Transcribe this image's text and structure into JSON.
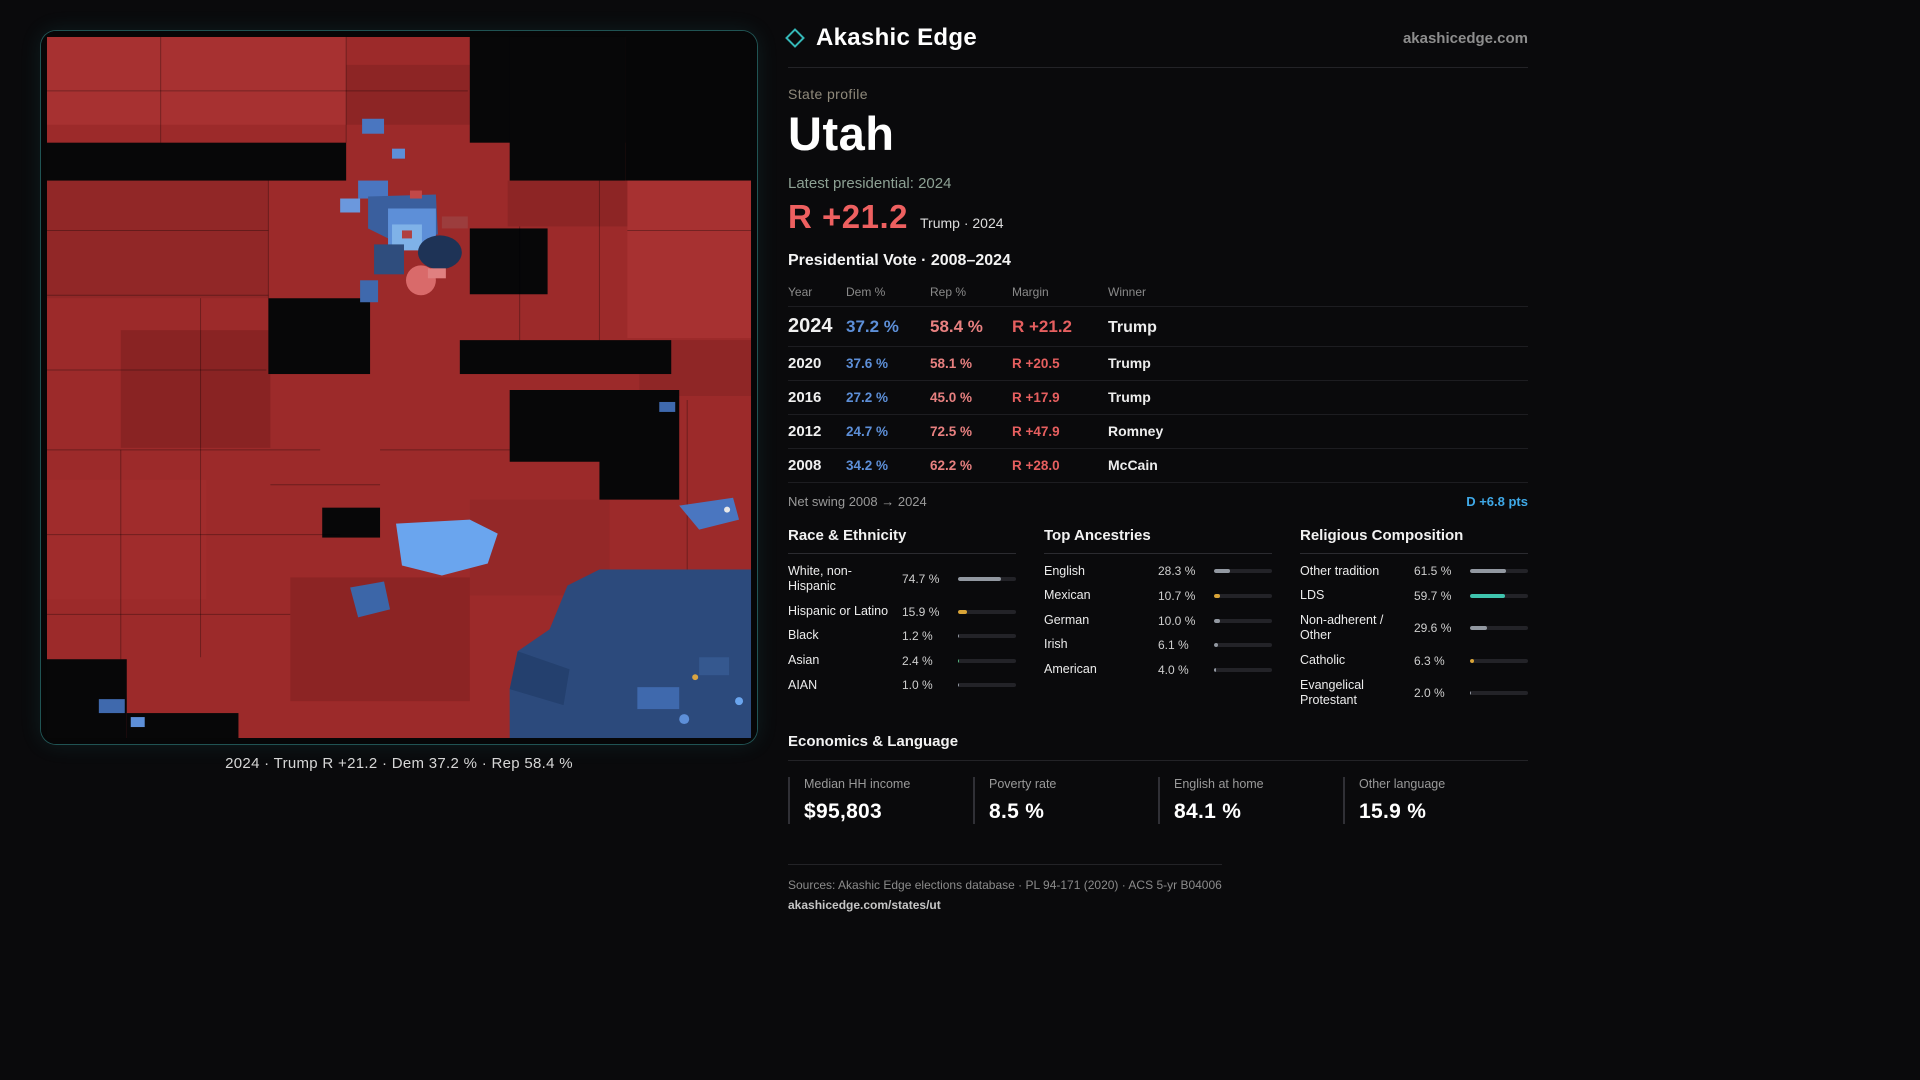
{
  "brand": {
    "name": "Akashic Edge",
    "site": "akashicedge.com"
  },
  "profile": {
    "kicker": "State profile",
    "title": "Utah",
    "latest_label": "Latest presidential: 2024",
    "headline_margin": "R +21.2",
    "headline_context": "Trump · 2024"
  },
  "map": {
    "caption": "2024 · Trump R +21.2 · Dem 37.2 % · Rep 58.4 %"
  },
  "vote_table": {
    "title": "Presidential Vote · 2008–2024",
    "columns": {
      "year": "Year",
      "dem": "Dem %",
      "rep": "Rep %",
      "margin": "Margin",
      "winner": "Winner"
    },
    "rows": [
      {
        "year": "2024",
        "dem": "37.2 %",
        "rep": "58.4 %",
        "margin": "R +21.2",
        "winner": "Trump"
      },
      {
        "year": "2020",
        "dem": "37.6 %",
        "rep": "58.1 %",
        "margin": "R +20.5",
        "winner": "Trump"
      },
      {
        "year": "2016",
        "dem": "27.2 %",
        "rep": "45.0 %",
        "margin": "R +17.9",
        "winner": "Trump"
      },
      {
        "year": "2012",
        "dem": "24.7 %",
        "rep": "72.5 %",
        "margin": "R +47.9",
        "winner": "Romney"
      },
      {
        "year": "2008",
        "dem": "34.2 %",
        "rep": "62.2 %",
        "margin": "R +28.0",
        "winner": "McCain"
      }
    ],
    "net_swing_label": "Net swing 2008 → 2024",
    "net_swing_value": "D +6.8 pts"
  },
  "race": {
    "title": "Race & Ethnicity",
    "rows": [
      {
        "label": "White, non-Hispanic",
        "value": "74.7 %",
        "pct": 74.7,
        "color": "#9298a1"
      },
      {
        "label": "Hispanic or Latino",
        "value": "15.9 %",
        "pct": 15.9,
        "color": "#d9a437"
      },
      {
        "label": "Black",
        "value": "1.2 %",
        "pct": 1.2,
        "color": "#9298a1"
      },
      {
        "label": "Asian",
        "value": "2.4 %",
        "pct": 2.4,
        "color": "#53b87e"
      },
      {
        "label": "AIAN",
        "value": "1.0 %",
        "pct": 1.0,
        "color": "#9298a1"
      }
    ]
  },
  "ancestries": {
    "title": "Top Ancestries",
    "rows": [
      {
        "label": "English",
        "value": "28.3 %",
        "pct": 28.3,
        "color": "#9298a1"
      },
      {
        "label": "Mexican",
        "value": "10.7 %",
        "pct": 10.7,
        "color": "#d9a437"
      },
      {
        "label": "German",
        "value": "10.0 %",
        "pct": 10.0,
        "color": "#9298a1"
      },
      {
        "label": "Irish",
        "value": "6.1 %",
        "pct": 6.1,
        "color": "#9298a1"
      },
      {
        "label": "American",
        "value": "4.0 %",
        "pct": 4.0,
        "color": "#9298a1"
      }
    ]
  },
  "religion": {
    "title": "Religious Composition",
    "rows": [
      {
        "label": "Other tradition",
        "value": "61.5 %",
        "pct": 61.5,
        "color": "#9298a1"
      },
      {
        "label": "LDS",
        "value": "59.7 %",
        "pct": 59.7,
        "color": "#3fc4ae"
      },
      {
        "label": "Non-adherent / Other",
        "value": "29.6 %",
        "pct": 29.6,
        "color": "#9298a1"
      },
      {
        "label": "Catholic",
        "value": "6.3 %",
        "pct": 6.3,
        "color": "#d9a437"
      },
      {
        "label": "Evangelical Protestant",
        "value": "2.0 %",
        "pct": 2.0,
        "color": "#9298a1"
      }
    ]
  },
  "economics": {
    "title": "Economics & Language",
    "stats": [
      {
        "label": "Median HH income",
        "value": "$95,803"
      },
      {
        "label": "Poverty rate",
        "value": "8.5 %"
      },
      {
        "label": "English at home",
        "value": "84.1 %"
      },
      {
        "label": "Other language",
        "value": "15.9 %"
      }
    ]
  },
  "footer": {
    "sources": "Sources: Akashic Edge elections database · PL 94-171 (2020) · ACS 5-yr B04006",
    "permalink": "akashicedge.com/states/ut"
  },
  "colors": {
    "dem_blue": "#5d8fd8",
    "rep_red": "#e88080",
    "margin_red": "#e65f5f",
    "swing_dem_blue": "#3fa9e8",
    "accent_teal": "#35b8b8",
    "bar_gold": "#d9a437",
    "bar_teal": "#3fc4ae"
  }
}
